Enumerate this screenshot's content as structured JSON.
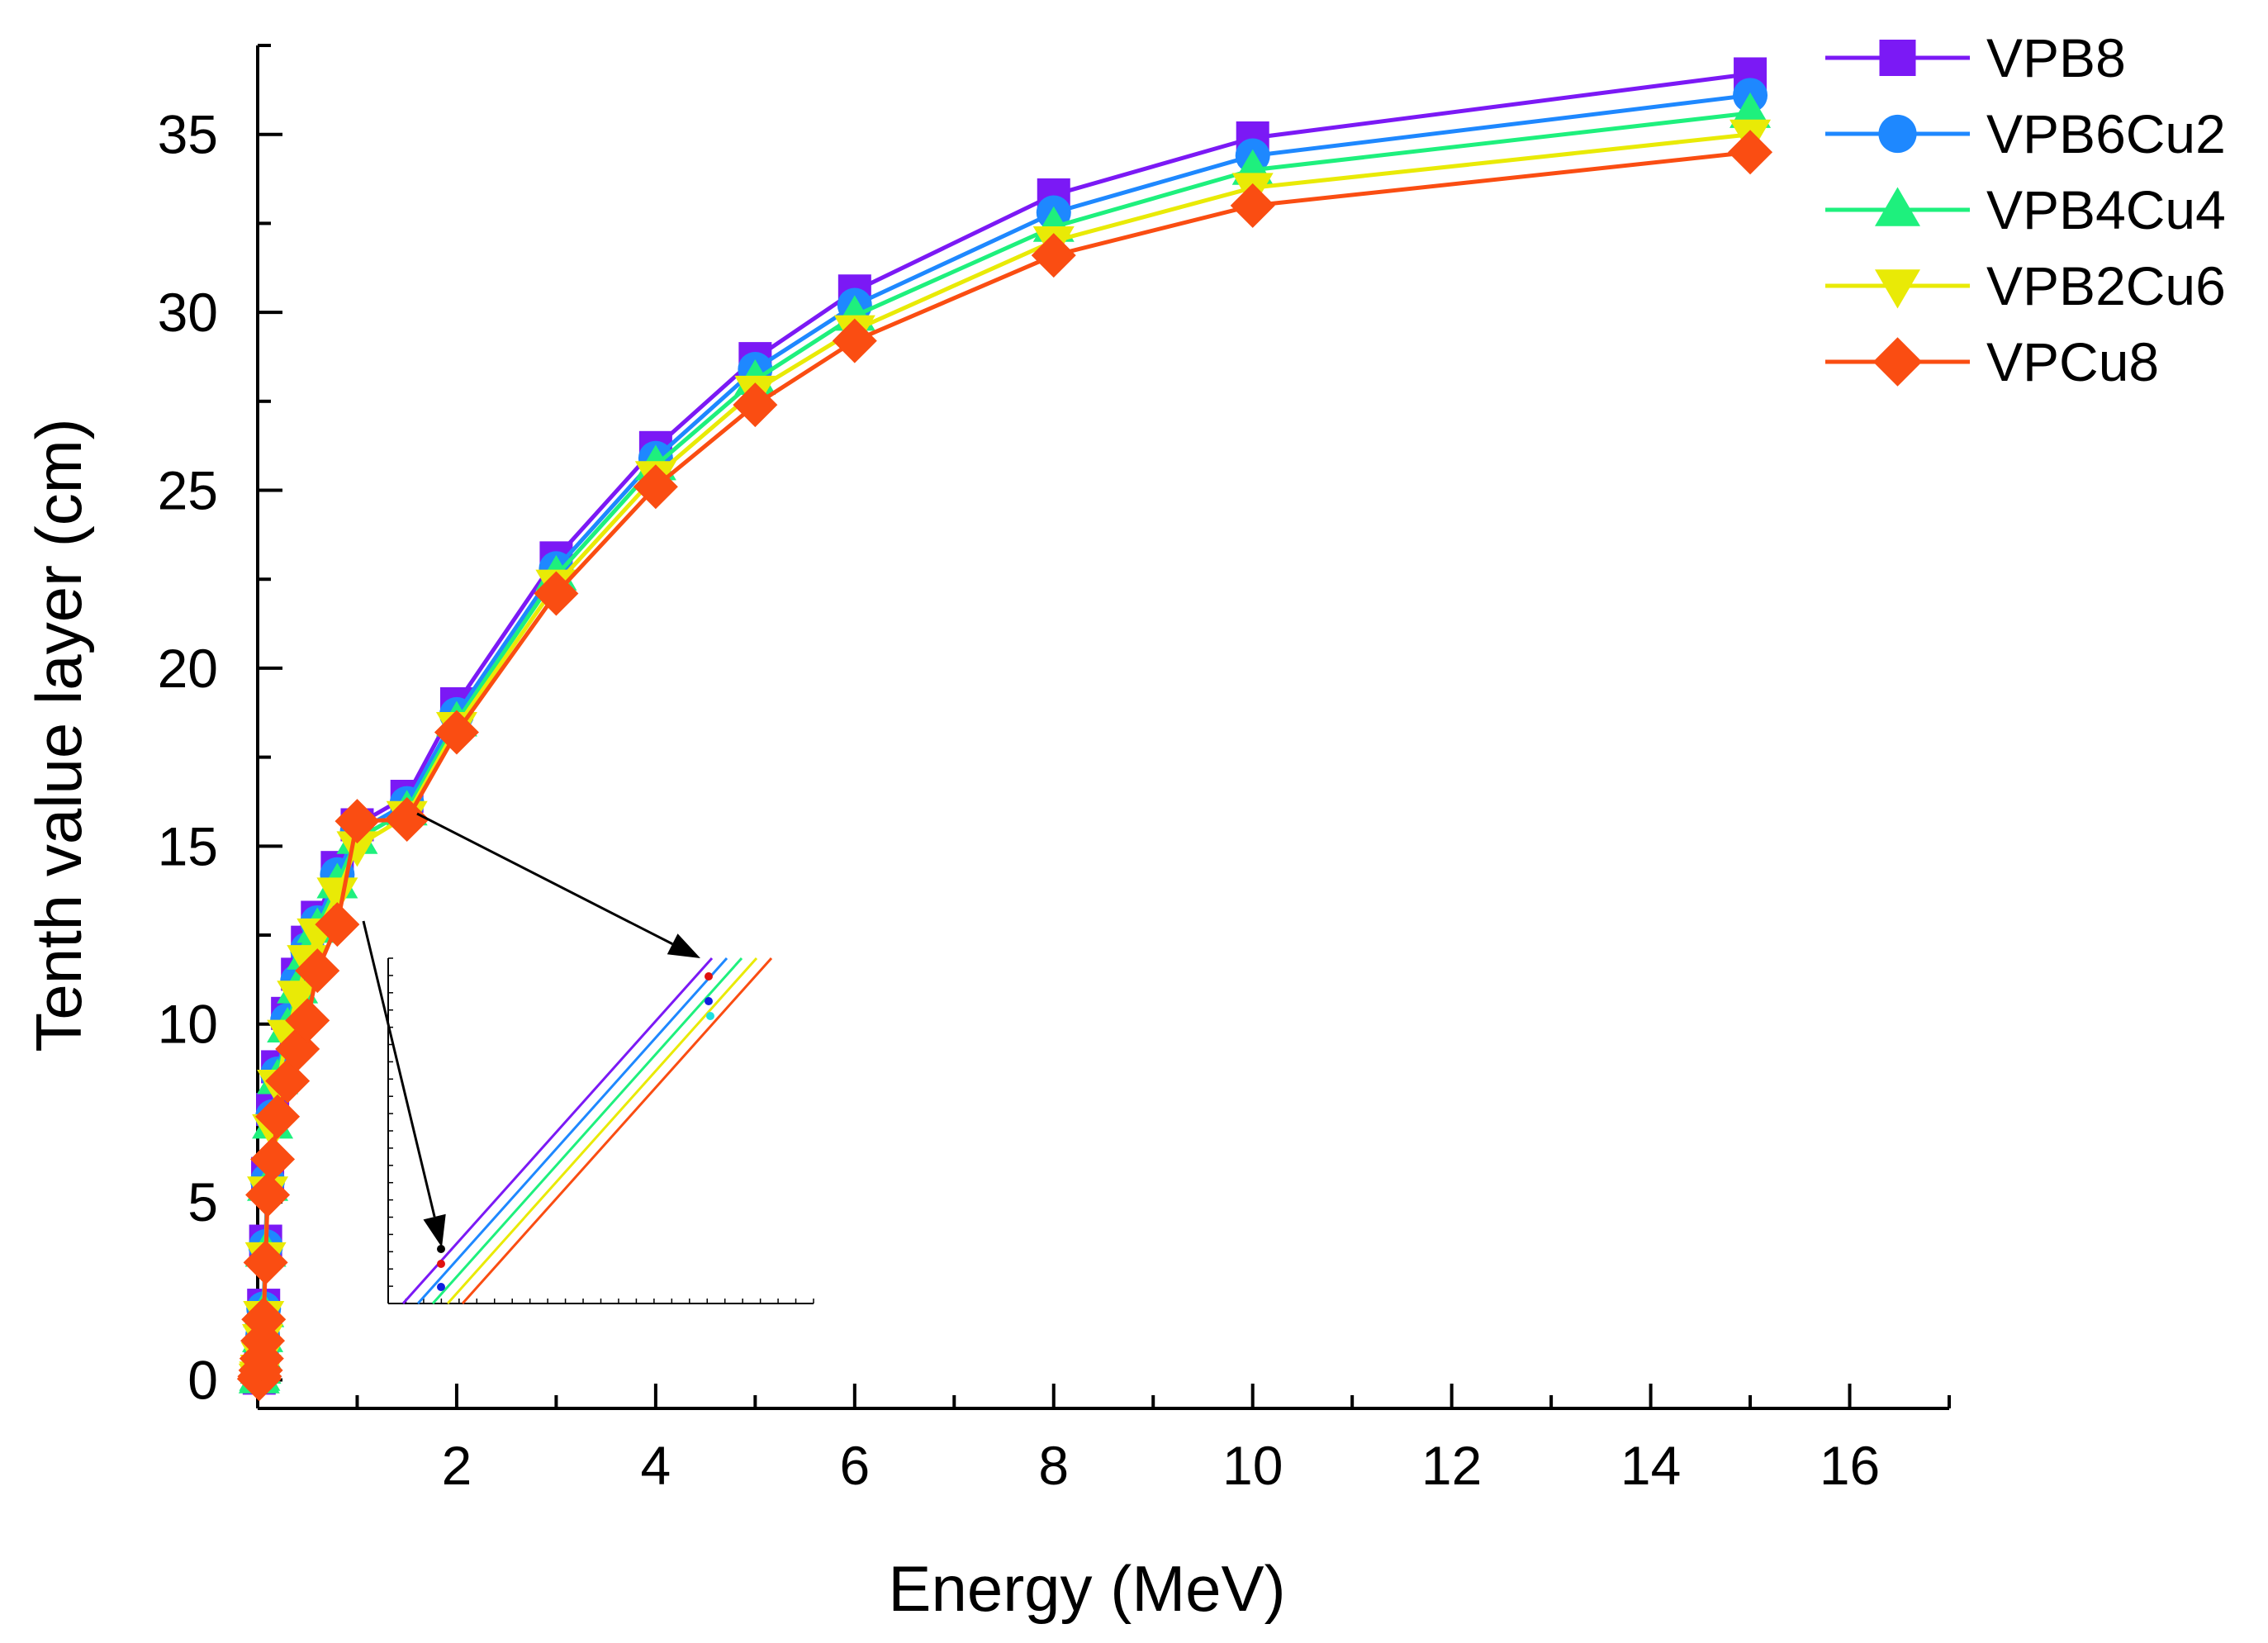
{
  "chart_data": {
    "type": "line",
    "title": "",
    "xlabel": "Energy (MeV)",
    "ylabel": "Tenth value layer (cm)",
    "xlim": [
      0,
      17
    ],
    "ylim": [
      -0.8,
      37.5
    ],
    "xticks": [
      2,
      4,
      6,
      8,
      10,
      12,
      14,
      16
    ],
    "xtick_labels": [
      "2",
      "4",
      "6",
      "8",
      "10",
      "12",
      "14",
      "16"
    ],
    "yticks": [
      0,
      5,
      10,
      15,
      20,
      25,
      30,
      35
    ],
    "ytick_labels": [
      "0",
      "5",
      "10",
      "15",
      "20",
      "25",
      "30",
      "35"
    ],
    "grid": false,
    "legend_position": "top-right",
    "x": [
      0.015,
      0.02,
      0.03,
      0.04,
      0.05,
      0.06,
      0.08,
      0.1,
      0.15,
      0.2,
      0.3,
      0.4,
      0.5,
      0.6,
      0.8,
      1.0,
      1.5,
      2,
      3,
      4,
      5,
      6,
      8,
      10,
      15
    ],
    "series": [
      {
        "name": "VPB8",
        "color": "#7b19f5",
        "marker": "square",
        "values": [
          0.05,
          0.12,
          0.35,
          0.75,
          1.3,
          2.1,
          3.9,
          5.8,
          7.6,
          8.8,
          10.3,
          11.4,
          12.3,
          13.0,
          14.4,
          15.6,
          16.4,
          19.0,
          23.1,
          26.2,
          28.7,
          30.6,
          33.3,
          34.9,
          36.7
        ]
      },
      {
        "name": "VPB6Cu2",
        "color": "#1e88ff",
        "marker": "circle",
        "values": [
          0.05,
          0.12,
          0.33,
          0.72,
          1.25,
          2.0,
          3.75,
          5.6,
          7.4,
          8.6,
          10.1,
          11.2,
          12.1,
          12.85,
          14.2,
          15.4,
          16.2,
          18.7,
          22.8,
          25.9,
          28.4,
          30.2,
          32.8,
          34.4,
          36.1
        ]
      },
      {
        "name": "VPB4Cu4",
        "color": "#1ef07d",
        "marker": "triangle-up",
        "values": [
          0.04,
          0.11,
          0.31,
          0.68,
          1.2,
          1.9,
          3.6,
          5.45,
          7.2,
          8.45,
          9.9,
          11.0,
          11.95,
          12.7,
          13.95,
          15.2,
          16.0,
          18.5,
          22.6,
          25.7,
          28.1,
          29.9,
          32.4,
          34.0,
          35.6
        ]
      },
      {
        "name": "VPB2Cu6",
        "color": "#e9ea06",
        "marker": "triangle-down",
        "values": [
          0.04,
          0.1,
          0.29,
          0.64,
          1.15,
          1.8,
          3.45,
          5.3,
          7.05,
          8.3,
          9.7,
          10.8,
          11.8,
          12.55,
          13.7,
          15.0,
          15.85,
          18.35,
          22.35,
          25.4,
          27.8,
          29.5,
          32.0,
          33.5,
          35.0
        ]
      },
      {
        "name": "VPCu8",
        "color": "#fa4d12",
        "marker": "diamond",
        "values": [
          0.03,
          0.1,
          0.27,
          0.6,
          1.1,
          1.7,
          3.3,
          5.2,
          6.2,
          7.4,
          8.4,
          9.3,
          10.1,
          11.5,
          12.8,
          15.7,
          15.75,
          18.2,
          22.1,
          25.1,
          27.4,
          29.2,
          31.6,
          33.0,
          34.5
        ]
      }
    ],
    "inset": {
      "description_none": "",
      "lines": 5
    }
  }
}
